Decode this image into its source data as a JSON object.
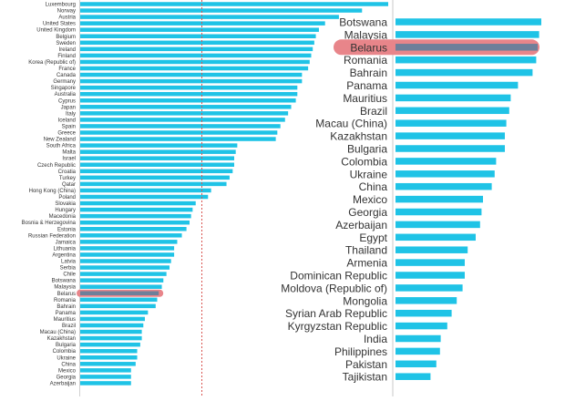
{
  "chart_data": [
    {
      "type": "bar",
      "orientation": "horizontal",
      "title": "",
      "xlabel": "",
      "ylabel": "",
      "grid": false,
      "categories": [
        "Luxembourg",
        "Norway",
        "Austria",
        "United States",
        "United Kingdom",
        "Belgium",
        "Sweden",
        "Ireland",
        "Finland",
        "Korea (Republic of)",
        "France",
        "Canada",
        "Germany",
        "Singapore",
        "Australia",
        "Cyprus",
        "Japan",
        "Italy",
        "Iceland",
        "Spain",
        "Greece",
        "New Zealand",
        "South Africa",
        "Malta",
        "Israel",
        "Czech Republic",
        "Croatia",
        "Turkey",
        "Qatar",
        "Hong Kong (China)",
        "Poland",
        "Slovakia",
        "Hungary",
        "Macedonia",
        "Bosnia & Herzegovina",
        "Estonia",
        "Russian Federation",
        "Jamaica",
        "Lithuania",
        "Argentina",
        "Latvia",
        "Serbia",
        "Chile",
        "Botswana",
        "Malaysia",
        "Belarus",
        "Romania",
        "Bahrain",
        "Panama",
        "Mauritius",
        "Brazil",
        "Macau (China)",
        "Kazakhstan",
        "Bulgaria",
        "Colombia",
        "Ukraine",
        "China",
        "Mexico",
        "Georgia",
        "Azerbaijan"
      ],
      "values": [
        100,
        91.5,
        84,
        79.5,
        77.5,
        76.5,
        76,
        75.5,
        75,
        74.5,
        74,
        72,
        72,
        70.5,
        70.5,
        70,
        68.5,
        67.5,
        66.5,
        65,
        64,
        63.5,
        51,
        50.5,
        50,
        50,
        49.5,
        48.5,
        47.5,
        42.5,
        41.5,
        37.5,
        36.5,
        36,
        35.5,
        34.5,
        33,
        31.5,
        30.5,
        30.5,
        29.5,
        29,
        28,
        27,
        26.5,
        25.5,
        25,
        24.5,
        22,
        21,
        20.5,
        20,
        20,
        19.5,
        18.5,
        18.5,
        18,
        16.5,
        16.5,
        16.5
      ],
      "reference_line": {
        "value": 39.5,
        "style": "dashed",
        "color": "#d9534f"
      },
      "highlight": "Belarus",
      "bar_color": "#1fc3e6",
      "highlight_color": "#e8858a"
    },
    {
      "type": "bar",
      "orientation": "horizontal",
      "title": "",
      "xlabel": "",
      "ylabel": "",
      "grid": false,
      "categories": [
        "Botswana",
        "Malaysia",
        "Belarus",
        "Romania",
        "Bahrain",
        "Panama",
        "Mauritius",
        "Brazil",
        "Macau (China)",
        "Kazakhstan",
        "Bulgaria",
        "Colombia",
        "Ukraine",
        "China",
        "Mexico",
        "Georgia",
        "Azerbaijan",
        "Egypt",
        "Thailand",
        "Armenia",
        "Dominican Republic",
        "Moldova (Republic of)",
        "Mongolia",
        "Syrian Arab Republic",
        "Kyrgyzstan Republic",
        "India",
        "Philippines",
        "Pakistan",
        "Tajikistan"
      ],
      "values": [
        100,
        98.5,
        97.5,
        96.5,
        94,
        84,
        79,
        78,
        76,
        75,
        75,
        69,
        68,
        66,
        60,
        59,
        58,
        55,
        49.5,
        47.5,
        47.5,
        46,
        42,
        38.5,
        35.5,
        31,
        30.5,
        28,
        24
      ],
      "highlight": "Belarus",
      "bar_color": "#1fc3e6",
      "highlight_color": "#e8858a"
    }
  ]
}
